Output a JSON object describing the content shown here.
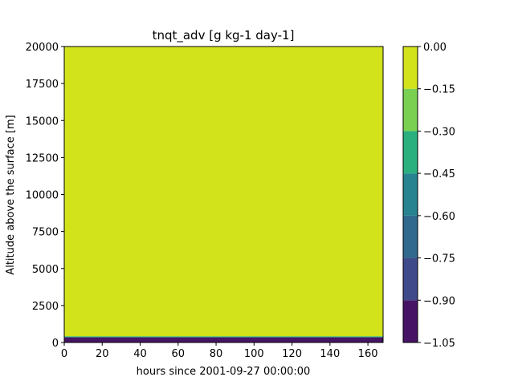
{
  "chart_data": {
    "type": "heatmap",
    "title": "tnqt_adv [g kg-1 day-1]",
    "xlabel": "hours since 2001-09-27 00:00:00",
    "ylabel": "Altitude above the surface [m]",
    "xlim": [
      0,
      168
    ],
    "ylim": [
      0,
      20000
    ],
    "x_ticks": [
      0,
      20,
      40,
      60,
      80,
      100,
      120,
      140,
      160
    ],
    "y_ticks": [
      0,
      2500,
      5000,
      7500,
      10000,
      12500,
      15000,
      17500,
      20000
    ],
    "grid": false,
    "colorbar": {
      "levels": [
        -1.05,
        -0.9,
        -0.75,
        -0.6,
        -0.45,
        -0.3,
        -0.15,
        0.0
      ],
      "tick_labels": [
        "−1.05",
        "−0.90",
        "−0.75",
        "−0.60",
        "−0.45",
        "−0.30",
        "−0.15",
        "0.00"
      ],
      "colors": [
        "#471365",
        "#3f4a8a",
        "#31688e",
        "#26838f",
        "#2ab07f",
        "#7ad151",
        "#d2e21b"
      ]
    },
    "layers": [
      {
        "altitude_from": 0,
        "altitude_to": 350,
        "level_index": 0
      },
      {
        "altitude_from": 350,
        "altitude_to": 420,
        "level_index": 4
      },
      {
        "altitude_from": 420,
        "altitude_to": 20000,
        "level_index": 6
      }
    ]
  }
}
